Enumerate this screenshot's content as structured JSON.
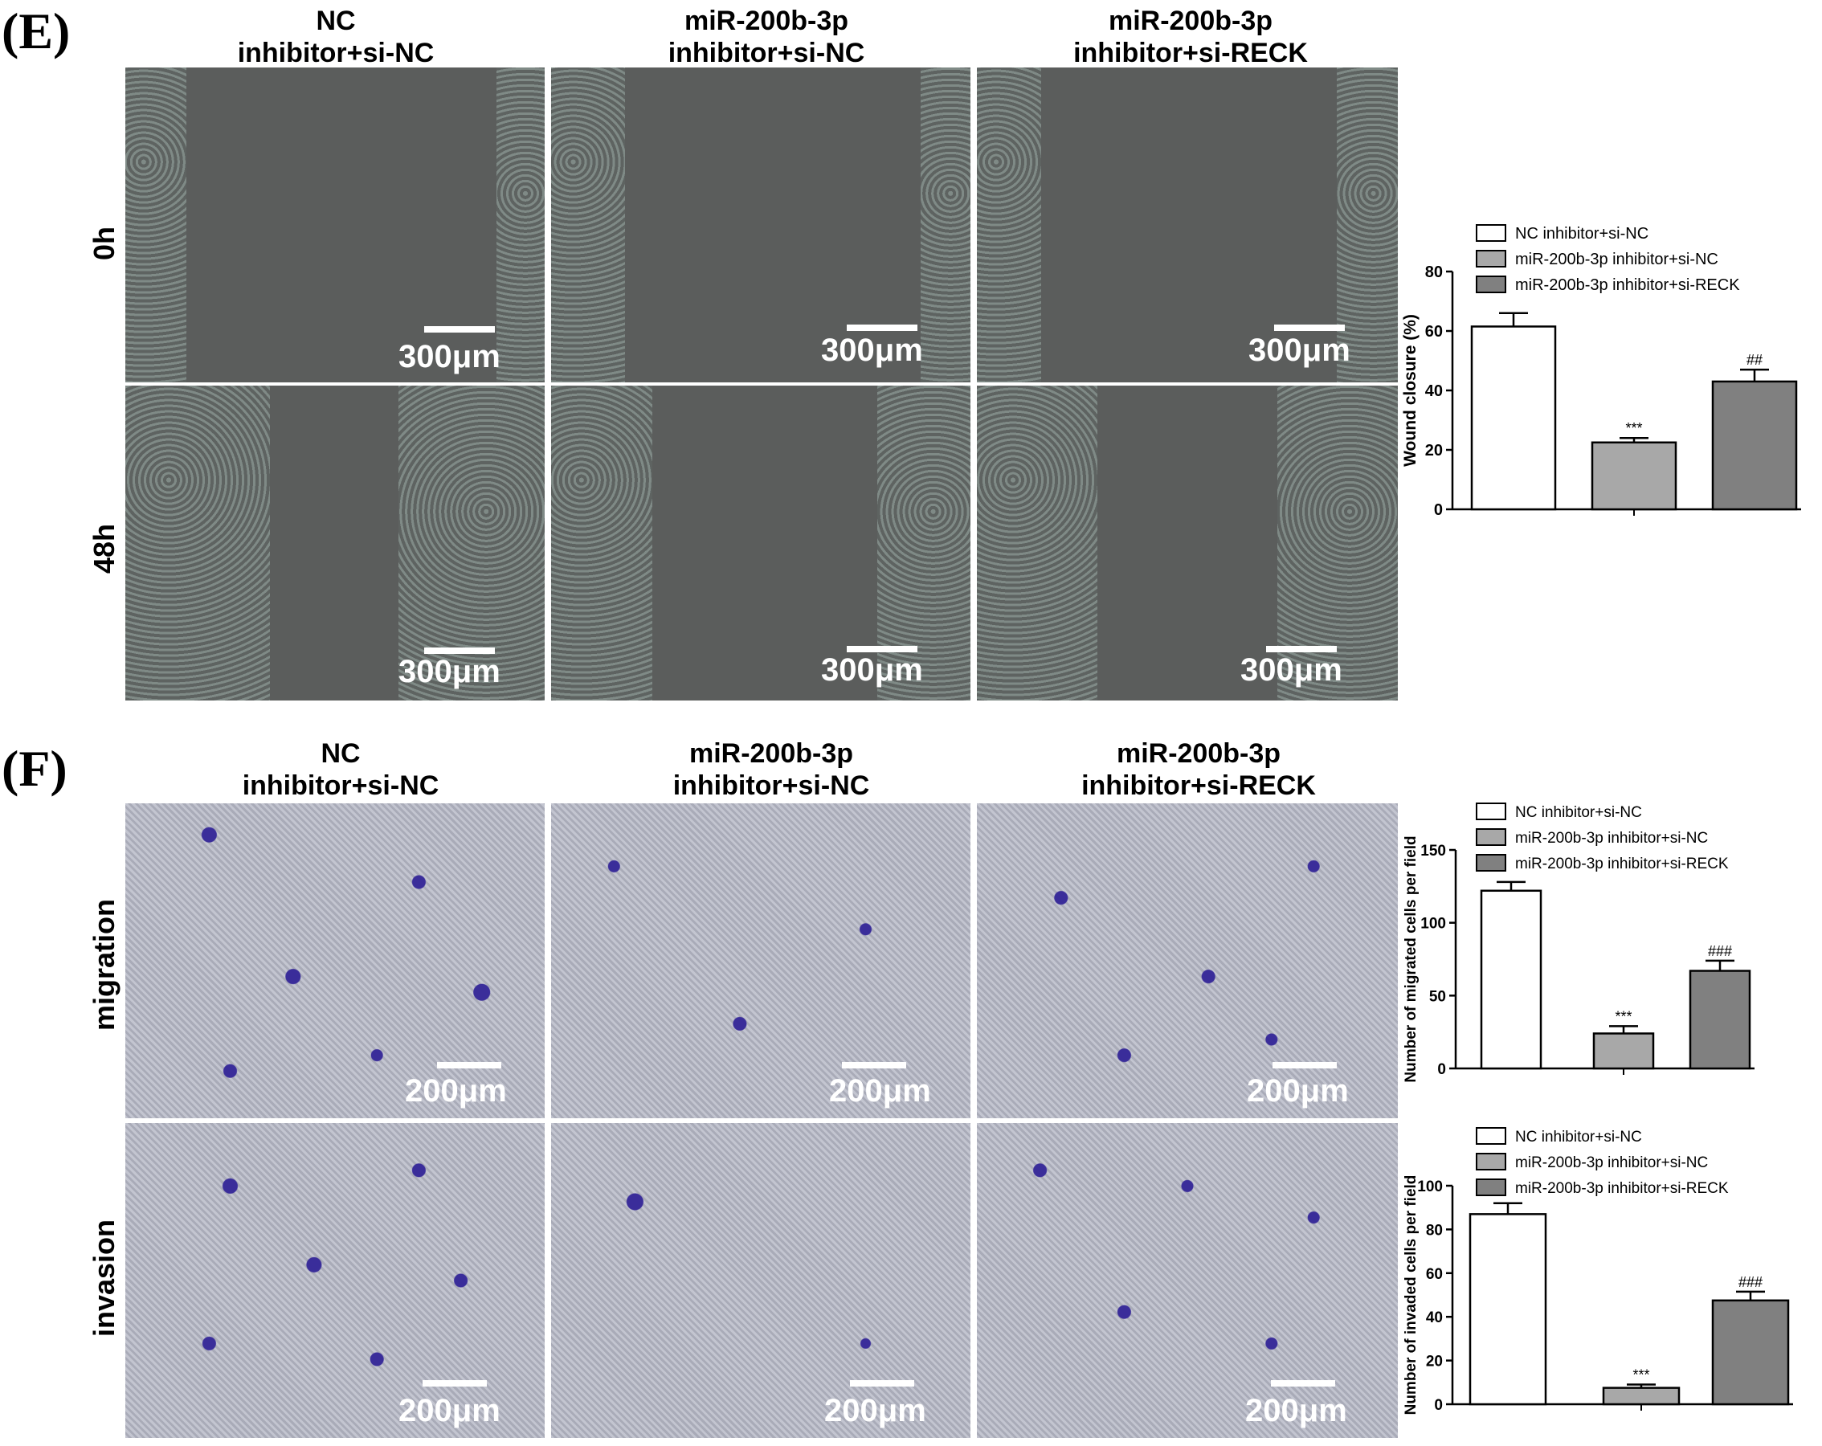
{
  "panels": {
    "E": {
      "label": "(E)",
      "columns": [
        {
          "line1": "NC",
          "line2": "inhibitor+si-NC"
        },
        {
          "line1": "miR-200b-3p",
          "line2": "inhibitor+si-NC"
        },
        {
          "line1": "miR-200b-3p",
          "line2": "inhibitor+si-RECK"
        }
      ],
      "rows": [
        "0h",
        "48h"
      ],
      "scale_text": "300μm"
    },
    "F": {
      "label": "(F)",
      "columns": [
        {
          "line1": "NC",
          "line2": "inhibitor+si-NC"
        },
        {
          "line1": "miR-200b-3p",
          "line2": "inhibitor+si-NC"
        },
        {
          "line1": "miR-200b-3p",
          "line2": "inhibitor+si-RECK"
        }
      ],
      "rows": [
        "migration",
        "invasion"
      ],
      "scale_text": "200μm"
    }
  },
  "chart_data": [
    {
      "type": "bar",
      "categories": [
        "NC inhibitor+si-NC",
        "miR-200b-3p inhibitor+si-NC",
        "miR-200b-3p inhibitor+si-RECK"
      ],
      "values": [
        61.5,
        22.5,
        43
      ],
      "errors": [
        4.5,
        1.5,
        4
      ],
      "annotations": [
        "",
        "***",
        "##"
      ],
      "ylabel": "Wound closure (%)",
      "ylim": [
        0,
        80
      ],
      "yticks": [
        0,
        20,
        40,
        60,
        80
      ],
      "legend": "top",
      "colors": [
        "#ffffff",
        "#a8a8a8",
        "#808080"
      ]
    },
    {
      "type": "bar",
      "categories": [
        "NC inhibitor+si-NC",
        "miR-200b-3p inhibitor+si-NC",
        "miR-200b-3p inhibitor+si-RECK"
      ],
      "values": [
        122,
        24,
        67
      ],
      "errors": [
        6,
        5,
        7
      ],
      "annotations": [
        "",
        "***",
        "###"
      ],
      "ylabel": "Number of migrated cells per field",
      "ylim": [
        0,
        150
      ],
      "yticks": [
        0,
        50,
        100,
        150
      ],
      "legend": "top",
      "colors": [
        "#ffffff",
        "#a8a8a8",
        "#808080"
      ]
    },
    {
      "type": "bar",
      "categories": [
        "NC inhibitor+si-NC",
        "miR-200b-3p inhibitor+si-NC",
        "miR-200b-3p inhibitor+si-RECK"
      ],
      "values": [
        87,
        7.5,
        47.5
      ],
      "errors": [
        5,
        1.5,
        4
      ],
      "annotations": [
        "",
        "***",
        "###"
      ],
      "ylabel": "Number of invaded cells per field",
      "ylim": [
        0,
        100
      ],
      "yticks": [
        0,
        20,
        40,
        60,
        80,
        100
      ],
      "legend": "top",
      "colors": [
        "#ffffff",
        "#a8a8a8",
        "#808080"
      ]
    }
  ]
}
